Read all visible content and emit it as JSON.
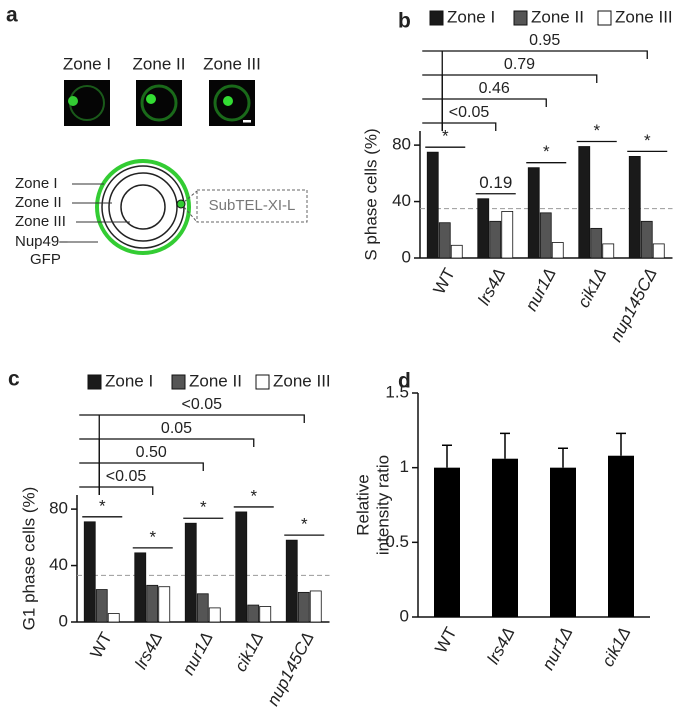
{
  "diagram": {
    "panel": "a",
    "zones": [
      "Zone I",
      "Zone II",
      "Zone III"
    ],
    "labels": [
      "Zone I",
      "Zone II",
      "Zone III"
    ],
    "reporter": [
      "Nup49–",
      "GFP"
    ],
    "locus": "SubTEL-XI-L"
  },
  "chart_data": [
    {
      "type": "bar",
      "panel": "b",
      "y_label": "S phase cells (%)",
      "categories": [
        "WT",
        "lrs4Δ",
        "nur1Δ",
        "cik1Δ",
        "nup145CΔ"
      ],
      "series": [
        {
          "name": "Zone I",
          "color": "#1a1a1a",
          "values": [
            75,
            42,
            64,
            79,
            72
          ]
        },
        {
          "name": "Zone II",
          "color": "#555555",
          "values": [
            25,
            26,
            32,
            21,
            26
          ]
        },
        {
          "name": "Zone III",
          "color": "#ffffff",
          "values": [
            9,
            33,
            11,
            10,
            10
          ]
        }
      ],
      "ylim": [
        0,
        90
      ],
      "yticks": [
        0,
        40,
        80
      ],
      "reference_line": 35,
      "comparisons": [
        {
          "label": "<0.05",
          "categories": [
            0,
            1
          ]
        },
        {
          "label": "0.46",
          "categories": [
            0,
            2
          ]
        },
        {
          "label": "0.79",
          "categories": [
            0,
            3
          ]
        },
        {
          "label": "0.95",
          "categories": [
            0,
            4
          ]
        }
      ],
      "group_marks": [
        {
          "label": "*",
          "category": 0
        },
        {
          "label": "0.19",
          "category": 1
        },
        {
          "label": "*",
          "category": 2
        },
        {
          "label": "*",
          "category": 3
        },
        {
          "label": "*",
          "category": 4
        }
      ]
    },
    {
      "type": "bar",
      "panel": "c",
      "y_label": "G1 phase cells (%)",
      "categories": [
        "WT",
        "lrs4Δ",
        "nur1Δ",
        "cik1Δ",
        "nup145CΔ"
      ],
      "series": [
        {
          "name": "Zone I",
          "color": "#1a1a1a",
          "values": [
            71,
            49,
            70,
            78,
            58
          ]
        },
        {
          "name": "Zone II",
          "color": "#555555",
          "values": [
            23,
            26,
            20,
            12,
            21
          ]
        },
        {
          "name": "Zone III",
          "color": "#ffffff",
          "values": [
            6,
            25,
            10,
            11,
            22
          ]
        }
      ],
      "ylim": [
        0,
        90
      ],
      "yticks": [
        0,
        40,
        80
      ],
      "reference_line": 33,
      "comparisons": [
        {
          "label": "<0.05",
          "categories": [
            0,
            1
          ]
        },
        {
          "label": "0.50",
          "categories": [
            0,
            2
          ]
        },
        {
          "label": "0.05",
          "categories": [
            0,
            3
          ]
        },
        {
          "label": "<0.05",
          "categories": [
            0,
            4
          ]
        }
      ],
      "group_marks": [
        {
          "label": "*",
          "category": 0
        },
        {
          "label": "*",
          "category": 1
        },
        {
          "label": "*",
          "category": 2
        },
        {
          "label": "*",
          "category": 3
        },
        {
          "label": "*",
          "category": 4
        }
      ]
    },
    {
      "type": "errorbar",
      "panel": "d",
      "y_label": [
        "Relative",
        "intensity ratio"
      ],
      "categories": [
        "WT",
        "lrs4Δ",
        "nur1Δ",
        "cik1Δ"
      ],
      "values": [
        1.0,
        1.06,
        1.0,
        1.08
      ],
      "errors": [
        0.15,
        0.17,
        0.13,
        0.15
      ],
      "color": "#000000",
      "ylim": [
        0,
        1.5
      ],
      "yticks": [
        0,
        0.5,
        1,
        1.5
      ]
    }
  ]
}
